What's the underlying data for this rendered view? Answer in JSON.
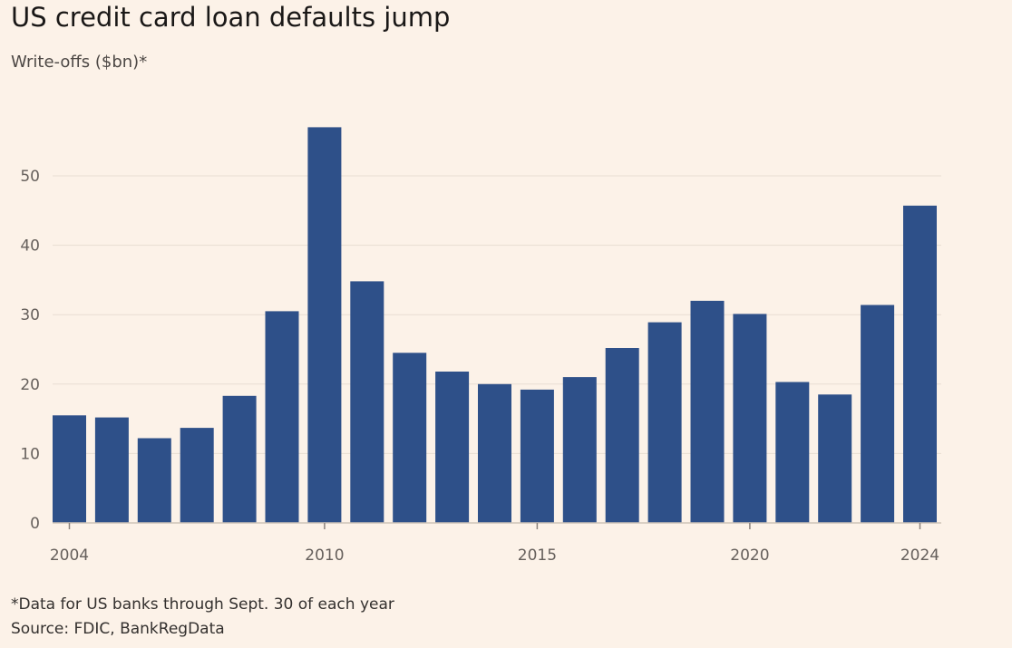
{
  "header": {
    "title": "US credit card loan defaults jump",
    "subtitle": "Write-offs ($bn)*"
  },
  "footer": {
    "note": "*Data for US banks through Sept. 30 of each year",
    "source": "Source: FDIC, BankRegData"
  },
  "colors": {
    "background": "#fcf2e8",
    "bar": "#2e5089",
    "gridline": "#e8ddd2",
    "axis_text": "#66605c"
  },
  "chart_data": {
    "type": "bar",
    "title": "US credit card loan defaults jump",
    "subtitle": "Write-offs ($bn)*",
    "xlabel": "",
    "ylabel": "",
    "categories": [
      "2004",
      "2005",
      "2006",
      "2007",
      "2008",
      "2009",
      "2010",
      "2011",
      "2012",
      "2013",
      "2014",
      "2015",
      "2016",
      "2017",
      "2018",
      "2019",
      "2020",
      "2021",
      "2022",
      "2023",
      "2024"
    ],
    "values": [
      15.5,
      15.2,
      12.2,
      13.7,
      18.3,
      30.5,
      57.0,
      34.8,
      24.5,
      21.8,
      20.0,
      19.2,
      21.0,
      25.2,
      28.9,
      32.0,
      30.1,
      20.3,
      18.5,
      31.4,
      45.7
    ],
    "x_tick_labels": [
      "2004",
      "2010",
      "2015",
      "2020",
      "2024"
    ],
    "y_ticks": [
      0,
      10,
      20,
      30,
      40,
      50
    ],
    "ylim": [
      0,
      60
    ],
    "grid": true,
    "legend": "none"
  }
}
